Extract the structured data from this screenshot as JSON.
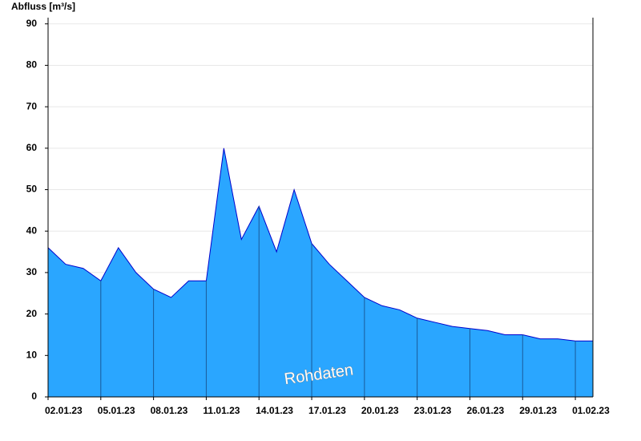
{
  "chart_data": {
    "type": "area",
    "y_label": "Abfluss [m³/s]",
    "annotation": "Rohdaten",
    "x": [
      "02.01.23",
      "03.01.23",
      "04.01.23",
      "05.01.23",
      "06.01.23",
      "07.01.23",
      "08.01.23",
      "09.01.23",
      "10.01.23",
      "11.01.23",
      "12.01.23",
      "13.01.23",
      "14.01.23",
      "15.01.23",
      "16.01.23",
      "17.01.23",
      "18.01.23",
      "19.01.23",
      "20.01.23",
      "21.01.23",
      "22.01.23",
      "23.01.23",
      "24.01.23",
      "25.01.23",
      "26.01.23",
      "27.01.23",
      "28.01.23",
      "29.01.23",
      "30.01.23",
      "31.01.23",
      "01.02.23"
    ],
    "values": [
      36,
      32,
      31,
      28,
      36,
      30,
      26,
      24,
      28,
      28,
      60,
      38,
      46,
      35,
      50,
      37,
      32,
      28,
      24,
      22,
      21,
      19,
      18,
      17,
      16.5,
      16,
      15,
      15,
      14,
      14,
      13.5
    ],
    "color": "#2aa6ff",
    "line_color": "#0000cc",
    "xticks": [
      "02.01.23",
      "05.01.23",
      "08.01.23",
      "11.01.23",
      "14.01.23",
      "17.01.23",
      "20.01.23",
      "23.01.23",
      "26.01.23",
      "29.01.23",
      "01.02.23"
    ],
    "ylim": [
      0,
      91.5
    ],
    "yticks": [
      0,
      10,
      20,
      30,
      40,
      50,
      60,
      70,
      80,
      90
    ],
    "grid": true
  }
}
